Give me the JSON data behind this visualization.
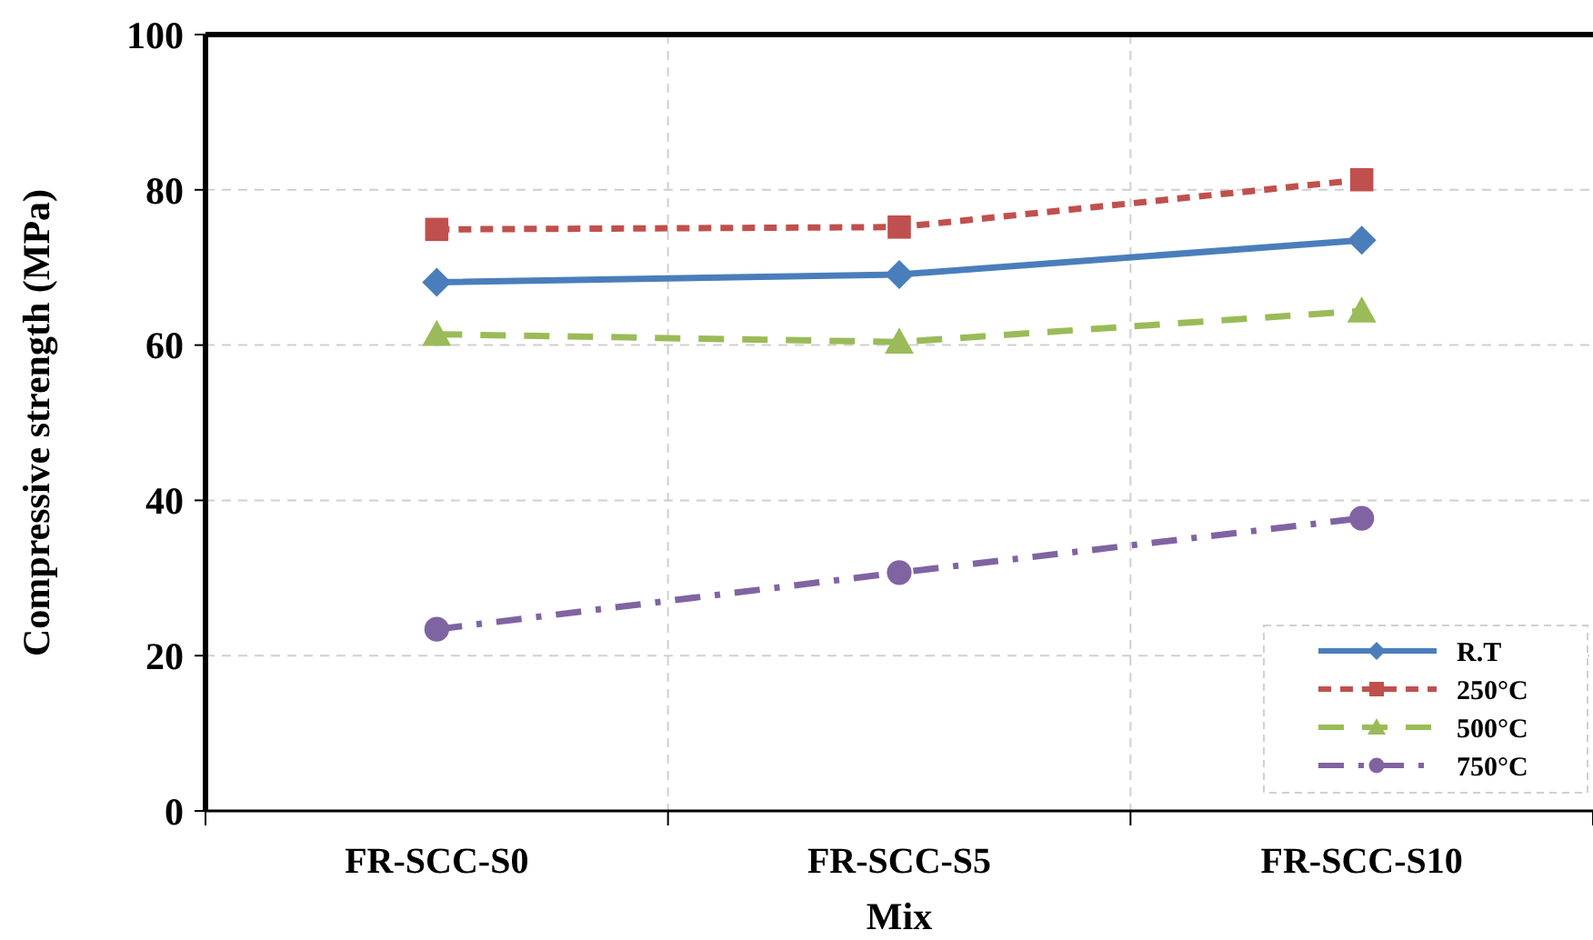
{
  "chart_data": {
    "type": "line",
    "xlabel": "Mix",
    "ylabel": "Compressive strength (MPa)",
    "categories": [
      "FR-SCC-S0",
      "FR-SCC-S5",
      "FR-SCC-S10"
    ],
    "series": [
      {
        "name": "R.T",
        "color": "#4a7ebb",
        "values": [
          68.1,
          69.1,
          73.5
        ],
        "marker": "diamond",
        "line_style": "solid"
      },
      {
        "name": "250°C",
        "color": "#c0504d",
        "values": [
          74.9,
          75.2,
          81.3
        ],
        "marker": "square",
        "line_style": "dashed"
      },
      {
        "name": "500°C",
        "color": "#9bbb59",
        "values": [
          61.4,
          60.4,
          64.4
        ],
        "marker": "triangle",
        "line_style": "longdash"
      },
      {
        "name": "750°C",
        "color": "#8064a2",
        "values": [
          23.4,
          30.7,
          37.7
        ],
        "marker": "circle",
        "line_style": "dashdot"
      }
    ],
    "ylim": [
      0,
      100
    ],
    "yticks": [
      0,
      20,
      40,
      60,
      80,
      100
    ],
    "grid": true,
    "legend": "bottom right"
  }
}
